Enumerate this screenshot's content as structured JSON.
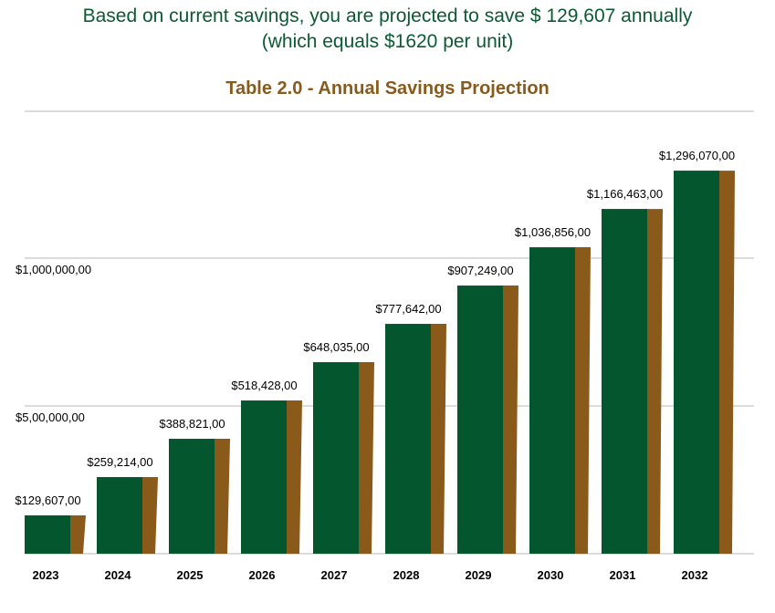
{
  "headline": {
    "line1": "Based on current savings, you are projected to save $ 129,607 annually",
    "line2": "(which equals $1620 per unit)"
  },
  "colors": {
    "headline": "#0b5a33",
    "title": "#8a5a1b",
    "bar_front": "#04562e",
    "bar_side": "#8a5a1b",
    "grid": "#c8c8c8"
  },
  "chart_data": {
    "type": "bar",
    "title": "Table 2.0 - Annual Savings Projection",
    "categories": [
      "2023",
      "2024",
      "2025",
      "2026",
      "2027",
      "2028",
      "2029",
      "2030",
      "2031",
      "2032"
    ],
    "values": [
      129607,
      259214,
      388821,
      518428,
      648035,
      777642,
      907249,
      1036856,
      1166463,
      1296070
    ],
    "data_labels": [
      "$129,607,00",
      "$259,214,00",
      "$388,821,00",
      "$518,428,00",
      "$648,035,00",
      "$777,642,00",
      "$907,249,00",
      "$1,036,856,00",
      "$1,166,463,00",
      "$1,296,070,00"
    ],
    "y_ticks": [
      {
        "value": 500000,
        "label": "$5,00,000,00"
      },
      {
        "value": 1000000,
        "label": "$1,000,000,00"
      }
    ],
    "ylim": [
      0,
      1300000
    ],
    "grid": true,
    "legend": "none"
  }
}
